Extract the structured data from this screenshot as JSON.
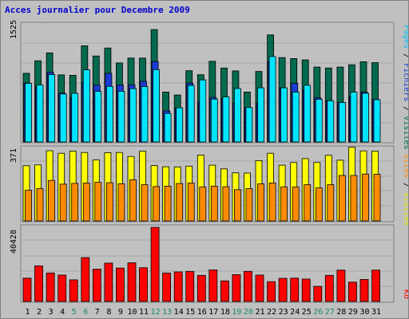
{
  "chart_data": {
    "type": "bar",
    "title": "Acces journalier pour Decembre 2009",
    "categories": [
      "1",
      "2",
      "3",
      "4",
      "5",
      "6",
      "7",
      "8",
      "9",
      "10",
      "11",
      "12",
      "13",
      "14",
      "15",
      "16",
      "17",
      "18",
      "19",
      "20",
      "21",
      "22",
      "23",
      "24",
      "25",
      "26",
      "27",
      "28",
      "29",
      "30",
      "31"
    ],
    "weekend_days": [
      "5",
      "6",
      "12",
      "13",
      "19",
      "20",
      "26",
      "27"
    ],
    "top_panel": {
      "max_label": "1525",
      "ylim": [
        0,
        1525
      ],
      "legend": [
        "Pages",
        "Fichiers",
        "Visites"
      ],
      "series": [
        {
          "name": "Visites",
          "color": "#006a4e",
          "values": [
            887,
            1049,
            1151,
            867,
            861,
            1243,
            1111,
            1214,
            1021,
            1084,
            1084,
            1452,
            645,
            607,
            920,
            869,
            1042,
            955,
            918,
            645,
            911,
            1384,
            1090,
            1078,
            1060,
            968,
            955,
            968,
            997,
            1037,
            1024
          ]
        },
        {
          "name": "Pages",
          "color": "#1a3bd6",
          "values": [
            760,
            714,
            900,
            631,
            572,
            772,
            735,
            887,
            738,
            738,
            784,
            1040,
            402,
            437,
            760,
            517,
            576,
            562,
            501,
            443,
            498,
            1034,
            700,
            756,
            667,
            572,
            533,
            510,
            585,
            644,
            546
          ]
        },
        {
          "name": "Fichiers",
          "color": "#00e5ff",
          "values": [
            757,
            737,
            871,
            620,
            629,
            932,
            654,
            718,
            655,
            688,
            715,
            935,
            369,
            442,
            731,
            802,
            553,
            582,
            690,
            445,
            700,
            1104,
            700,
            644,
            733,
            551,
            533,
            510,
            644,
            629,
            546
          ]
        }
      ]
    },
    "middle_panel": {
      "max_label": "371",
      "ylim": [
        0,
        371
      ],
      "legend": [
        "Sites",
        "Visites"
      ],
      "series": [
        {
          "name": "Visites",
          "color": "#ffff00",
          "values": [
            279,
            283,
            355,
            342,
            353,
            346,
            308,
            345,
            346,
            326,
            353,
            280,
            274,
            273,
            277,
            333,
            282,
            263,
            243,
            242,
            305,
            342,
            282,
            295,
            315,
            295,
            332,
            307,
            373,
            354,
            353
          ]
        },
        {
          "name": "Sites",
          "color": "#ff8c00",
          "values": [
            155,
            164,
            205,
            186,
            190,
            191,
            195,
            193,
            188,
            208,
            183,
            174,
            176,
            189,
            191,
            172,
            176,
            173,
            158,
            163,
            187,
            192,
            172,
            171,
            183,
            167,
            183,
            230,
            230,
            237,
            236
          ]
        }
      ]
    },
    "bottom_panel": {
      "max_label": "40428",
      "ylim": [
        0,
        40428
      ],
      "legend": [
        "Ko"
      ],
      "series": [
        {
          "name": "Ko",
          "color": "#ff0000",
          "values": [
            12700,
            19400,
            15500,
            14400,
            11800,
            23900,
            17600,
            20900,
            18200,
            21100,
            18400,
            40400,
            15500,
            16100,
            16400,
            14200,
            17200,
            11200,
            14600,
            16400,
            14400,
            10800,
            12600,
            12700,
            12200,
            8200,
            14200,
            17100,
            10500,
            12000,
            17100
          ]
        }
      ]
    }
  }
}
